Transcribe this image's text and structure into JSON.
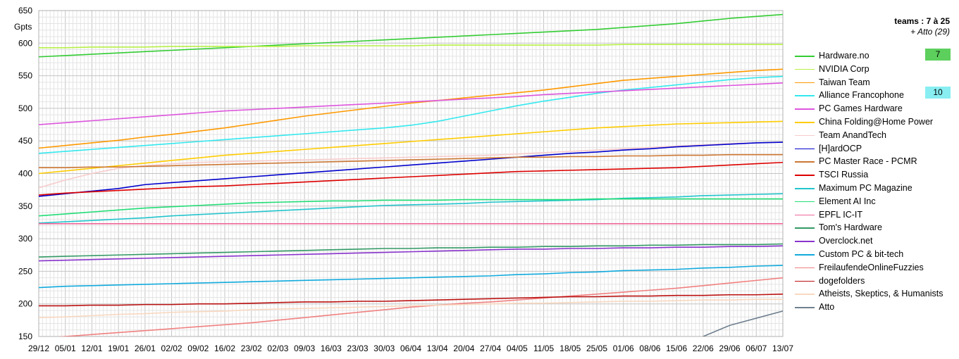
{
  "header": {
    "title": "teams : 7 à 25",
    "subtitle": "+ Atto (29)"
  },
  "badges": [
    {
      "label": "7",
      "color": "#5ccf5c"
    },
    {
      "label": "10",
      "color": "#88eef2"
    }
  ],
  "chart_data": {
    "type": "line",
    "ylabel": "Gpts",
    "ylim": [
      150,
      650
    ],
    "yticks": [
      150,
      200,
      250,
      300,
      350,
      400,
      450,
      500,
      550,
      600,
      650
    ],
    "x": [
      "29/12",
      "05/01",
      "12/01",
      "19/01",
      "26/01",
      "02/02",
      "09/02",
      "16/02",
      "23/02",
      "02/03",
      "09/03",
      "16/03",
      "23/03",
      "30/03",
      "06/04",
      "13/04",
      "20/04",
      "27/04",
      "04/05",
      "11/05",
      "18/05",
      "25/05",
      "01/06",
      "08/06",
      "15/06",
      "22/06",
      "29/06",
      "06/07",
      "13/07"
    ],
    "grid": true,
    "legend_position": "right",
    "series": [
      {
        "name": "Hardware.no",
        "color": "#33cc33",
        "values": [
          579,
          581,
          583,
          585,
          587,
          589,
          591,
          593,
          595,
          597,
          599,
          601,
          603,
          605,
          607,
          609,
          611,
          613,
          615,
          617,
          619,
          621,
          624,
          627,
          630,
          634,
          638,
          641,
          644
        ]
      },
      {
        "name": "NVIDIA Corp",
        "color": "#b8f048",
        "values": [
          593,
          593,
          594,
          594,
          594,
          595,
          595,
          595,
          595,
          595,
          596,
          596,
          596,
          596,
          596,
          597,
          597,
          597,
          597,
          597,
          597,
          597,
          598,
          598,
          598,
          598,
          598,
          598,
          598
        ]
      },
      {
        "name": "Taiwan Team",
        "color": "#ff9900",
        "values": [
          439,
          443,
          447,
          451,
          456,
          460,
          465,
          470,
          476,
          482,
          488,
          493,
          498,
          503,
          508,
          512,
          516,
          520,
          524,
          528,
          533,
          538,
          543,
          546,
          549,
          552,
          555,
          558,
          560
        ]
      },
      {
        "name": "Alliance Francophone",
        "color": "#33e8ee",
        "values": [
          431,
          434,
          437,
          440,
          443,
          446,
          449,
          452,
          455,
          458,
          461,
          464,
          467,
          470,
          474,
          480,
          488,
          496,
          504,
          511,
          517,
          523,
          528,
          532,
          536,
          540,
          544,
          547,
          549
        ]
      },
      {
        "name": "PC Games Hardware",
        "color": "#dd55dd",
        "values": [
          475,
          478,
          481,
          484,
          487,
          490,
          493,
          496,
          498,
          500,
          502,
          504,
          506,
          508,
          510,
          512,
          514,
          516,
          518,
          521,
          523,
          525,
          527,
          529,
          531,
          533,
          535,
          537,
          539
        ]
      },
      {
        "name": "China Folding@Home Power",
        "color": "#ffcc00",
        "values": [
          400,
          404,
          408,
          412,
          416,
          420,
          424,
          428,
          431,
          434,
          437,
          440,
          443,
          446,
          449,
          452,
          455,
          458,
          461,
          464,
          467,
          470,
          472,
          474,
          476,
          477,
          478,
          479,
          480
        ]
      },
      {
        "name": "Team AnandTech",
        "color": "#f7cccc",
        "values": [
          378,
          390,
          400,
          408,
          412,
          415,
          417,
          418,
          419,
          420,
          421,
          422,
          423,
          424,
          425,
          426,
          427,
          428,
          430,
          432,
          434,
          436,
          438,
          440,
          442,
          444,
          446,
          447,
          448
        ]
      },
      {
        "name": "[H]ardOCP",
        "color": "#0000cc",
        "values": [
          365,
          369,
          373,
          377,
          383,
          386,
          389,
          392,
          395,
          398,
          401,
          404,
          407,
          410,
          413,
          416,
          419,
          422,
          425,
          428,
          431,
          433,
          436,
          438,
          441,
          443,
          445,
          447,
          448
        ]
      },
      {
        "name": "PC Master Race - PCMR",
        "color": "#cc7733",
        "values": [
          409,
          409,
          410,
          410,
          411,
          412,
          413,
          414,
          415,
          416,
          417,
          418,
          419,
          420,
          421,
          422,
          423,
          424,
          425,
          425,
          426,
          426,
          427,
          427,
          428,
          428,
          429,
          429,
          429
        ]
      },
      {
        "name": "TSCI Russia",
        "color": "#dd0000",
        "values": [
          367,
          370,
          372,
          374,
          376,
          378,
          380,
          381,
          383,
          385,
          387,
          389,
          391,
          393,
          395,
          397,
          399,
          401,
          403,
          404,
          405,
          406,
          407,
          408,
          409,
          411,
          413,
          415,
          417
        ]
      },
      {
        "name": "Maximum PC Magazine",
        "color": "#22c4cc",
        "values": [
          324,
          326,
          328,
          330,
          332,
          335,
          337,
          339,
          341,
          343,
          345,
          347,
          349,
          351,
          352,
          353,
          354,
          356,
          357,
          358,
          359,
          360,
          362,
          363,
          364,
          366,
          367,
          368,
          369
        ]
      },
      {
        "name": "Element AI Inc",
        "color": "#22dd77",
        "values": [
          335,
          338,
          341,
          344,
          347,
          349,
          351,
          353,
          355,
          356,
          357,
          358,
          358,
          359,
          359,
          359,
          360,
          360,
          360,
          360,
          360,
          361,
          361,
          361,
          361,
          361,
          361,
          361,
          361
        ]
      },
      {
        "name": "EPFL IC-IT",
        "color": "#ee6699",
        "values": [
          323,
          323,
          323,
          323,
          323,
          323,
          323,
          323,
          323,
          323,
          323,
          323,
          323,
          323,
          323,
          323,
          323,
          323,
          323,
          323,
          323,
          323,
          323,
          323,
          323,
          323,
          323,
          323,
          323
        ]
      },
      {
        "name": "Tom's Hardware",
        "color": "#339966",
        "values": [
          272,
          273,
          274,
          275,
          276,
          277,
          278,
          279,
          280,
          281,
          282,
          283,
          284,
          285,
          285,
          286,
          286,
          287,
          287,
          288,
          288,
          289,
          289,
          290,
          290,
          291,
          291,
          291,
          292
        ]
      },
      {
        "name": "Overclock.net",
        "color": "#8833cc",
        "values": [
          266,
          267,
          268,
          269,
          270,
          271,
          272,
          273,
          274,
          275,
          276,
          277,
          278,
          279,
          280,
          281,
          282,
          283,
          284,
          284,
          285,
          285,
          286,
          286,
          287,
          287,
          288,
          288,
          289
        ]
      },
      {
        "name": "Custom PC & bit-tech",
        "color": "#11aadd",
        "values": [
          225,
          227,
          228,
          229,
          230,
          231,
          232,
          233,
          234,
          235,
          236,
          237,
          238,
          239,
          240,
          241,
          242,
          243,
          245,
          246,
          248,
          249,
          251,
          252,
          253,
          255,
          256,
          258,
          259
        ]
      },
      {
        "name": "FreilaufendeOnlineFuzzies",
        "color": "#f08080",
        "values": [
          147,
          150,
          153,
          156,
          159,
          162,
          165,
          168,
          171,
          175,
          179,
          183,
          187,
          191,
          195,
          198,
          201,
          203,
          206,
          209,
          212,
          215,
          218,
          221,
          224,
          228,
          232,
          236,
          240
        ]
      },
      {
        "name": "dogefolders",
        "color": "#bb1111",
        "values": [
          197,
          197,
          198,
          198,
          199,
          199,
          200,
          200,
          201,
          202,
          203,
          203,
          204,
          204,
          205,
          206,
          207,
          208,
          209,
          210,
          211,
          211,
          212,
          212,
          213,
          213,
          214,
          214,
          215
        ]
      },
      {
        "name": "Atheists, Skeptics, & Humanists",
        "color": "#f8d8c0",
        "values": [
          179,
          180,
          182,
          184,
          185,
          187,
          188,
          189,
          191,
          192,
          193,
          194,
          195,
          196,
          197,
          198,
          199,
          200,
          201,
          201,
          202,
          203,
          204,
          204,
          205,
          206,
          206,
          207,
          207
        ]
      },
      {
        "name": "Atto",
        "color": "#708090",
        "values": [
          null,
          null,
          null,
          null,
          null,
          null,
          null,
          null,
          null,
          null,
          null,
          null,
          null,
          null,
          null,
          null,
          null,
          null,
          null,
          null,
          null,
          null,
          null,
          null,
          null,
          150,
          167,
          178,
          189
        ]
      }
    ]
  }
}
